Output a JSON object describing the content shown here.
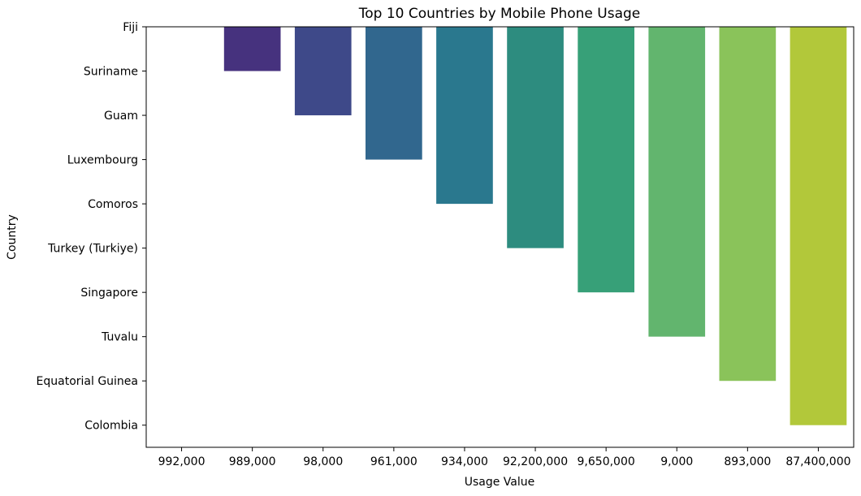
{
  "chart_data": {
    "type": "bar",
    "title": "Top 10 Countries by Mobile Phone Usage",
    "xlabel": "Usage Value",
    "ylabel": "Country",
    "x_categories": [
      "992,000",
      "989,000",
      "98,000",
      "961,000",
      "934,000",
      "92,200,000",
      "9,650,000",
      "9,000",
      "893,000",
      "87,400,000"
    ],
    "y_categories": [
      "Fiji",
      "Suriname",
      "Guam",
      "Luxembourg",
      "Comoros",
      "Turkey (Turkiye)",
      "Singapore",
      "Tuvalu",
      "Equatorial Guinea",
      "Colombia"
    ],
    "bars": [
      {
        "x": "992,000",
        "y": "Fiji",
        "color": "#440154"
      },
      {
        "x": "989,000",
        "y": "Suriname",
        "color": "#46327e"
      },
      {
        "x": "98,000",
        "y": "Guam",
        "color": "#3e4989"
      },
      {
        "x": "961,000",
        "y": "Luxembourg",
        "color": "#31678e"
      },
      {
        "x": "934,000",
        "y": "Comoros",
        "color": "#2a788e"
      },
      {
        "x": "92,200,000",
        "y": "Turkey (Turkiye)",
        "color": "#2d8c7f"
      },
      {
        "x": "9,650,000",
        "y": "Singapore",
        "color": "#37a078"
      },
      {
        "x": "9,000",
        "y": "Tuvalu",
        "color": "#62b56e"
      },
      {
        "x": "893,000",
        "y": "Equatorial Guinea",
        "color": "#8ac35a"
      },
      {
        "x": "87,400,000",
        "y": "Colombia",
        "color": "#b2c83a"
      }
    ],
    "grid": false,
    "legend": "none"
  }
}
